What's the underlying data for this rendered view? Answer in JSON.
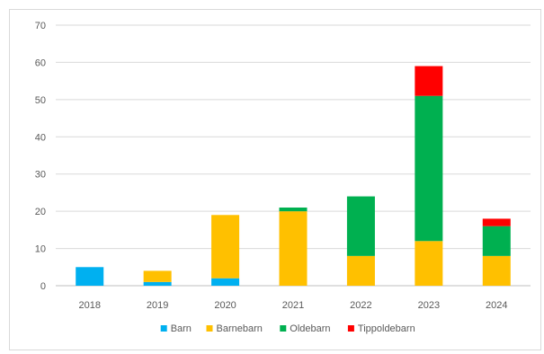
{
  "chart_data": {
    "type": "bar",
    "stacked": true,
    "categories": [
      "2018",
      "2019",
      "2020",
      "2021",
      "2022",
      "2023",
      "2024"
    ],
    "series": [
      {
        "name": "Barn",
        "color": "#00b0f0",
        "values": [
          5,
          1,
          2,
          0,
          0,
          0,
          0
        ]
      },
      {
        "name": "Barnebarn",
        "color": "#ffc000",
        "values": [
          0,
          3,
          17,
          20,
          8,
          12,
          8
        ]
      },
      {
        "name": "Oldebarn",
        "color": "#00b050",
        "values": [
          0,
          0,
          0,
          1,
          16,
          39,
          8
        ]
      },
      {
        "name": "Tippoldebarn",
        "color": "#ff0000",
        "values": [
          0,
          0,
          0,
          0,
          0,
          8,
          2
        ]
      }
    ],
    "ylim": [
      0,
      70
    ],
    "yticks": [
      0,
      10,
      20,
      30,
      40,
      50,
      60,
      70
    ],
    "grid": true,
    "legend": "bottom"
  }
}
